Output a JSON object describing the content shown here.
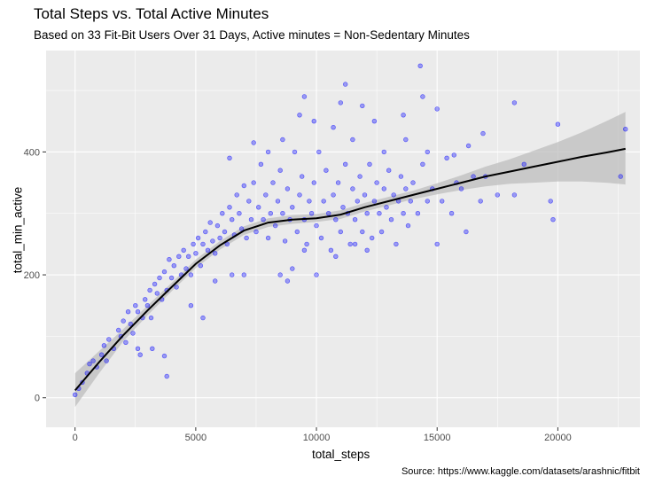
{
  "chart_data": {
    "type": "scatter",
    "title": "Total Steps vs. Total Active Minutes",
    "subtitle": "Based on 33 Fit-Bit Users Over 31 Days, Active minutes = Non-Sedentary Minutes",
    "caption": "Source: https://www.kaggle.com/datasets/arashnic/fitbit",
    "xlabel": "total_steps",
    "ylabel": "total_min_active",
    "xlim": [
      -1200,
      23400
    ],
    "ylim": [
      -48,
      565
    ],
    "x_ticks": [
      0,
      5000,
      10000,
      15000,
      20000
    ],
    "y_ticks": [
      0,
      200,
      400
    ],
    "grid": true,
    "point_color": "#0000ff",
    "point_fill_opacity": 0.35,
    "smooth_color": "#000000",
    "ribbon_color": "#bdbdbd",
    "smooth": {
      "x": [
        0,
        1000,
        2000,
        3000,
        4000,
        5000,
        6000,
        7000,
        8000,
        9000,
        10000,
        11000,
        12000,
        13000,
        14000,
        15000,
        16000,
        17000,
        18000,
        19000,
        20000,
        21000,
        22000,
        22800
      ],
      "y": [
        12,
        58,
        102,
        142,
        180,
        218,
        248,
        272,
        285,
        290,
        292,
        298,
        310,
        320,
        330,
        340,
        350,
        360,
        368,
        376,
        384,
        392,
        399,
        405
      ],
      "lower": [
        -15,
        40,
        92,
        134,
        173,
        211,
        241,
        265,
        278,
        283,
        286,
        291,
        303,
        313,
        323,
        331,
        338,
        344,
        348,
        350,
        352,
        352,
        350,
        347
      ],
      "upper": [
        40,
        76,
        112,
        150,
        187,
        225,
        255,
        279,
        292,
        297,
        299,
        305,
        317,
        327,
        337,
        349,
        362,
        376,
        388,
        402,
        416,
        432,
        450,
        465
      ]
    },
    "points": [
      [
        0,
        5
      ],
      [
        150,
        15
      ],
      [
        300,
        25
      ],
      [
        500,
        40
      ],
      [
        600,
        55
      ],
      [
        750,
        60
      ],
      [
        900,
        50
      ],
      [
        1100,
        70
      ],
      [
        1200,
        85
      ],
      [
        1300,
        60
      ],
      [
        1400,
        95
      ],
      [
        1600,
        80
      ],
      [
        1800,
        110
      ],
      [
        1900,
        100
      ],
      [
        2000,
        125
      ],
      [
        2100,
        90
      ],
      [
        2200,
        140
      ],
      [
        2300,
        120
      ],
      [
        2400,
        105
      ],
      [
        2500,
        150
      ],
      [
        2600,
        140
      ],
      [
        2700,
        70
      ],
      [
        2800,
        130
      ],
      [
        2900,
        160
      ],
      [
        3000,
        150
      ],
      [
        3100,
        175
      ],
      [
        3150,
        130
      ],
      [
        3300,
        185
      ],
      [
        3400,
        170
      ],
      [
        3500,
        195
      ],
      [
        3600,
        160
      ],
      [
        3700,
        205
      ],
      [
        3800,
        175
      ],
      [
        3900,
        225
      ],
      [
        4000,
        195
      ],
      [
        4100,
        215
      ],
      [
        4200,
        180
      ],
      [
        4300,
        230
      ],
      [
        4400,
        200
      ],
      [
        4500,
        240
      ],
      [
        4600,
        210
      ],
      [
        4700,
        230
      ],
      [
        4800,
        200
      ],
      [
        4900,
        250
      ],
      [
        5000,
        235
      ],
      [
        5100,
        260
      ],
      [
        5200,
        215
      ],
      [
        5300,
        250
      ],
      [
        5400,
        270
      ],
      [
        5500,
        240
      ],
      [
        5600,
        285
      ],
      [
        5700,
        255
      ],
      [
        5800,
        235
      ],
      [
        5900,
        280
      ],
      [
        6000,
        260
      ],
      [
        6100,
        300
      ],
      [
        6200,
        270
      ],
      [
        6300,
        250
      ],
      [
        6400,
        310
      ],
      [
        6500,
        290
      ],
      [
        6600,
        265
      ],
      [
        6700,
        330
      ],
      [
        6800,
        300
      ],
      [
        6900,
        275
      ],
      [
        7000,
        345
      ],
      [
        7100,
        260
      ],
      [
        7200,
        320
      ],
      [
        7300,
        290
      ],
      [
        7400,
        350
      ],
      [
        7500,
        270
      ],
      [
        7600,
        310
      ],
      [
        7700,
        380
      ],
      [
        7800,
        290
      ],
      [
        7900,
        330
      ],
      [
        8000,
        260
      ],
      [
        8100,
        300
      ],
      [
        8200,
        350
      ],
      [
        8300,
        280
      ],
      [
        8400,
        320
      ],
      [
        8500,
        370
      ],
      [
        8600,
        300
      ],
      [
        8700,
        255
      ],
      [
        8800,
        340
      ],
      [
        8900,
        290
      ],
      [
        9000,
        310
      ],
      [
        9100,
        400
      ],
      [
        9200,
        270
      ],
      [
        9300,
        330
      ],
      [
        9400,
        360
      ],
      [
        9500,
        290
      ],
      [
        9600,
        250
      ],
      [
        9700,
        320
      ],
      [
        9800,
        300
      ],
      [
        9900,
        350
      ],
      [
        10000,
        280
      ],
      [
        10100,
        400
      ],
      [
        10200,
        260
      ],
      [
        10300,
        320
      ],
      [
        10400,
        370
      ],
      [
        10500,
        300
      ],
      [
        10600,
        240
      ],
      [
        10700,
        330
      ],
      [
        10800,
        290
      ],
      [
        10900,
        350
      ],
      [
        11000,
        270
      ],
      [
        11100,
        310
      ],
      [
        11200,
        380
      ],
      [
        11300,
        300
      ],
      [
        11400,
        250
      ],
      [
        11500,
        340
      ],
      [
        11600,
        290
      ],
      [
        11700,
        320
      ],
      [
        11800,
        360
      ],
      [
        11900,
        270
      ],
      [
        12000,
        330
      ],
      [
        12100,
        300
      ],
      [
        12200,
        380
      ],
      [
        12300,
        260
      ],
      [
        12400,
        320
      ],
      [
        12500,
        350
      ],
      [
        12600,
        300
      ],
      [
        12700,
        270
      ],
      [
        12800,
        340
      ],
      [
        12900,
        310
      ],
      [
        13000,
        370
      ],
      [
        13100,
        290
      ],
      [
        13200,
        330
      ],
      [
        13300,
        250
      ],
      [
        13400,
        320
      ],
      [
        13500,
        360
      ],
      [
        13600,
        300
      ],
      [
        13700,
        340
      ],
      [
        13800,
        280
      ],
      [
        13900,
        320
      ],
      [
        14000,
        350
      ],
      [
        14200,
        300
      ],
      [
        14400,
        380
      ],
      [
        14600,
        320
      ],
      [
        14800,
        340
      ],
      [
        15000,
        250
      ],
      [
        15200,
        320
      ],
      [
        15400,
        390
      ],
      [
        15600,
        300
      ],
      [
        15800,
        350
      ],
      [
        16000,
        340
      ],
      [
        16200,
        270
      ],
      [
        16500,
        360
      ],
      [
        16800,
        320
      ],
      [
        17000,
        360
      ],
      [
        17500,
        330
      ],
      [
        18200,
        330
      ],
      [
        18600,
        380
      ],
      [
        19700,
        320
      ],
      [
        19800,
        290
      ],
      [
        22600,
        360
      ],
      [
        4800,
        150
      ],
      [
        5300,
        130
      ],
      [
        3200,
        80
      ],
      [
        3700,
        68
      ],
      [
        3800,
        35
      ],
      [
        2600,
        80
      ],
      [
        5800,
        190
      ],
      [
        6500,
        200
      ],
      [
        7000,
        200
      ],
      [
        8500,
        200
      ],
      [
        8800,
        190
      ],
      [
        10000,
        200
      ],
      [
        9500,
        240
      ],
      [
        9000,
        210
      ],
      [
        10800,
        230
      ],
      [
        11600,
        250
      ],
      [
        12100,
        240
      ],
      [
        8000,
        400
      ],
      [
        8600,
        420
      ],
      [
        9300,
        460
      ],
      [
        9500,
        490
      ],
      [
        11200,
        510
      ],
      [
        11000,
        480
      ],
      [
        11900,
        475
      ],
      [
        12400,
        450
      ],
      [
        13600,
        460
      ],
      [
        14400,
        490
      ],
      [
        14300,
        540
      ],
      [
        15000,
        470
      ],
      [
        16300,
        410
      ],
      [
        16900,
        430
      ],
      [
        18200,
        480
      ],
      [
        20000,
        445
      ],
      [
        22800,
        437
      ],
      [
        13700,
        420
      ],
      [
        14600,
        400
      ],
      [
        15700,
        395
      ],
      [
        12800,
        400
      ],
      [
        11500,
        420
      ],
      [
        10700,
        440
      ],
      [
        9900,
        450
      ],
      [
        7400,
        415
      ],
      [
        6400,
        390
      ]
    ]
  }
}
